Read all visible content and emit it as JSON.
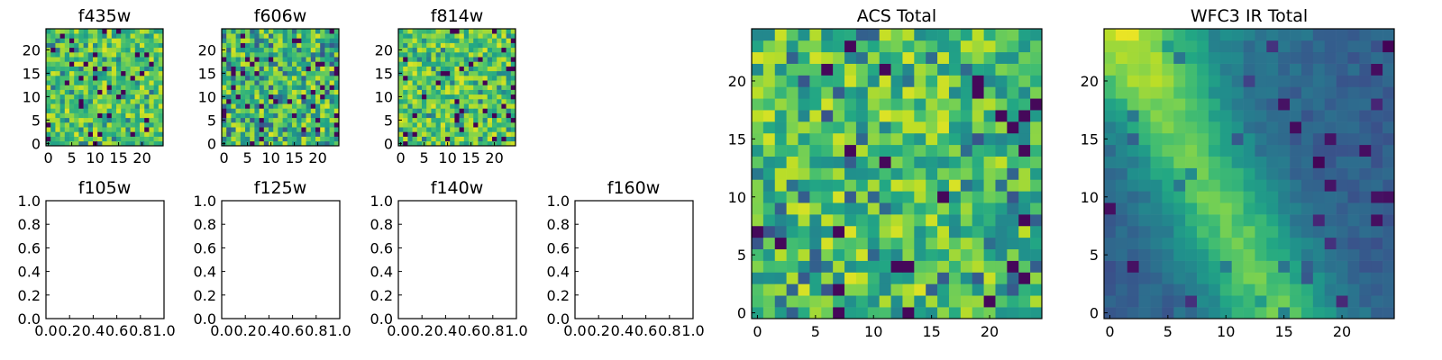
{
  "figure": {
    "description_colormap": "viridis"
  },
  "chart_data": [
    {
      "type": "heatmap",
      "title": "f435w",
      "grid": 25,
      "xticks": [
        0,
        5,
        10,
        15,
        20
      ],
      "yticks": [
        0,
        5,
        10,
        15,
        20
      ],
      "xlim": [
        -0.5,
        24.5
      ],
      "ylim": [
        -0.5,
        24.5
      ],
      "seed": 11,
      "pattern": "noise_bright"
    },
    {
      "type": "heatmap",
      "title": "f606w",
      "grid": 25,
      "xticks": [
        0,
        5,
        10,
        15,
        20
      ],
      "yticks": [
        0,
        5,
        10,
        15,
        20
      ],
      "xlim": [
        -0.5,
        24.5
      ],
      "ylim": [
        -0.5,
        24.5
      ],
      "seed": 23,
      "pattern": "noise_mid"
    },
    {
      "type": "heatmap",
      "title": "f814w",
      "grid": 25,
      "xticks": [
        0,
        5,
        10,
        15,
        20
      ],
      "yticks": [
        0,
        5,
        10,
        15,
        20
      ],
      "xlim": [
        -0.5,
        24.5
      ],
      "ylim": [
        -0.5,
        24.5
      ],
      "seed": 37,
      "pattern": "noise_bright"
    },
    {
      "type": "empty",
      "title": "f105w",
      "xticks": [
        "0.0",
        "0.2",
        "0.4",
        "0.6",
        "0.8",
        "1.0"
      ],
      "yticks": [
        "0.0",
        "0.2",
        "0.4",
        "0.6",
        "0.8",
        "1.0"
      ],
      "xlim": [
        0,
        1
      ],
      "ylim": [
        0,
        1
      ]
    },
    {
      "type": "empty",
      "title": "f125w",
      "xticks": [
        "0.0",
        "0.2",
        "0.4",
        "0.6",
        "0.8",
        "1.0"
      ],
      "yticks": [
        "0.0",
        "0.2",
        "0.4",
        "0.6",
        "0.8",
        "1.0"
      ],
      "xlim": [
        0,
        1
      ],
      "ylim": [
        0,
        1
      ]
    },
    {
      "type": "empty",
      "title": "f140w",
      "xticks": [
        "0.0",
        "0.2",
        "0.4",
        "0.6",
        "0.8",
        "1.0"
      ],
      "yticks": [
        "0.0",
        "0.2",
        "0.4",
        "0.6",
        "0.8",
        "1.0"
      ],
      "xlim": [
        0,
        1
      ],
      "ylim": [
        0,
        1
      ]
    },
    {
      "type": "empty",
      "title": "f160w",
      "xticks": [
        "0.0",
        "0.2",
        "0.4",
        "0.6",
        "0.8",
        "1.0"
      ],
      "yticks": [
        "0.0",
        "0.2",
        "0.4",
        "0.6",
        "0.8",
        "1.0"
      ],
      "xlim": [
        0,
        1
      ],
      "ylim": [
        0,
        1
      ]
    },
    {
      "type": "heatmap",
      "title": "ACS Total",
      "grid": 25,
      "xticks": [
        0,
        5,
        10,
        15,
        20
      ],
      "yticks": [
        0,
        5,
        10,
        15,
        20
      ],
      "xlim": [
        -0.5,
        24.5
      ],
      "ylim": [
        -0.5,
        24.5
      ],
      "seed": 53,
      "pattern": "noise_mid"
    },
    {
      "type": "heatmap",
      "title": "WFC3 IR Total",
      "grid": 25,
      "xticks": [
        0,
        5,
        10,
        15,
        20
      ],
      "yticks": [
        0,
        5,
        10,
        15,
        20
      ],
      "xlim": [
        -0.5,
        24.5
      ],
      "ylim": [
        -0.5,
        24.5
      ],
      "seed": 71,
      "pattern": "gradient_topleft"
    }
  ]
}
